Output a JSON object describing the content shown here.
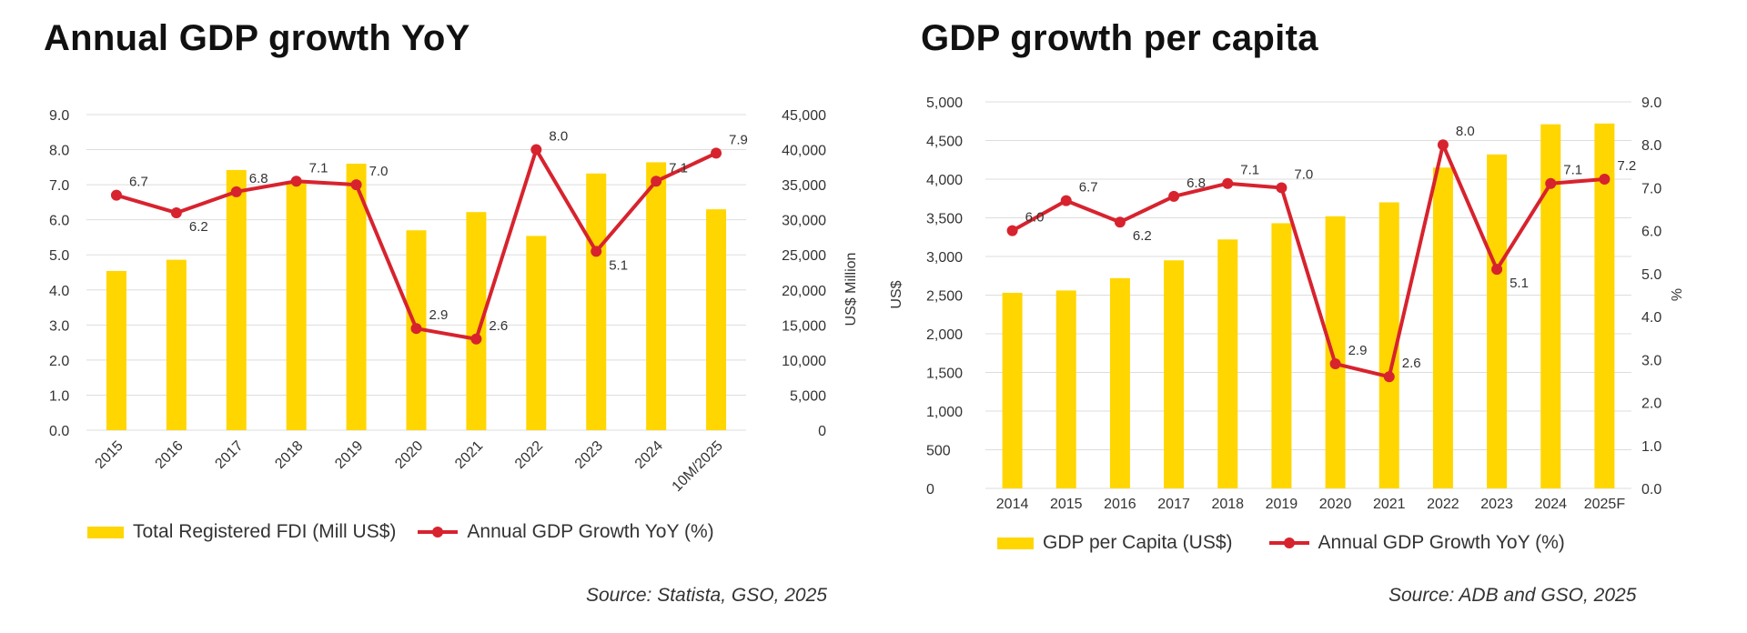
{
  "colors": {
    "bar": "#FFD600",
    "line": "#D7232E",
    "grid": "#DDDDDD",
    "text": "#333333"
  },
  "charts": [
    {
      "title": "Annual GDP growth YoY",
      "source": "Source: Statista, GSO, 2025",
      "legend": {
        "bar": "Total Registered FDI (Mill US$)",
        "line": "Annual GDP Growth YoY (%)"
      }
    },
    {
      "title": "GDP growth per capita",
      "source": "Source: ADB and GSO, 2025",
      "legend": {
        "bar": "GDP per Capita (US$)",
        "line": "Annual GDP Growth YoY (%)"
      }
    }
  ],
  "chart_data": [
    {
      "type": "bar",
      "title": "Annual GDP growth YoY",
      "categories": [
        "2015",
        "2016",
        "2017",
        "2018",
        "2019",
        "2020",
        "2021",
        "2022",
        "2023",
        "2024",
        "10M/2025"
      ],
      "series": [
        {
          "name": "Total Registered FDI (Mill US$)",
          "kind": "bar",
          "axis": "right",
          "values": [
            22700,
            24300,
            37100,
            35500,
            38000,
            28500,
            31100,
            27700,
            36600,
            38200,
            31500
          ]
        },
        {
          "name": "Annual GDP Growth YoY (%)",
          "kind": "line",
          "axis": "left",
          "values": [
            6.7,
            6.2,
            6.8,
            7.1,
            7.0,
            2.9,
            2.6,
            8.0,
            5.1,
            7.1,
            7.9
          ],
          "labels": [
            "6.7",
            "6.2",
            "6.8",
            "7.1",
            "7.0",
            "2.9",
            "2.6",
            "8.0",
            "5.1",
            "7.1",
            "7.9"
          ]
        }
      ],
      "y_left": {
        "range": [
          0,
          9
        ],
        "ticks": [
          "0.0",
          "1.0",
          "2.0",
          "3.0",
          "4.0",
          "5.0",
          "6.0",
          "7.0",
          "8.0",
          "9.0"
        ]
      },
      "y_right": {
        "range": [
          0,
          45000
        ],
        "ticks": [
          "0",
          "5,000",
          "10,000",
          "15,000",
          "20,000",
          "25,000",
          "30,000",
          "35,000",
          "40,000",
          "45,000"
        ],
        "label": "US$ Million"
      }
    },
    {
      "type": "bar",
      "title": "GDP growth per capita",
      "categories": [
        "2014",
        "2015",
        "2016",
        "2017",
        "2018",
        "2019",
        "2020",
        "2021",
        "2022",
        "2023",
        "2024",
        "2025F"
      ],
      "series": [
        {
          "name": "GDP per Capita (US$)",
          "kind": "bar",
          "axis": "left",
          "values": [
            2530,
            2560,
            2720,
            2950,
            3220,
            3430,
            3520,
            3700,
            4150,
            4320,
            4710,
            4720
          ]
        },
        {
          "name": "Annual GDP Growth YoY (%)",
          "kind": "line",
          "axis": "right",
          "values": [
            6.0,
            6.7,
            6.2,
            6.8,
            7.1,
            7.0,
            2.9,
            2.6,
            8.0,
            5.1,
            7.1,
            7.2
          ],
          "labels": [
            "6.0",
            "6.7",
            "6.2",
            "6.8",
            "7.1",
            "7.0",
            "2.9",
            "2.6",
            "8.0",
            "5.1",
            "7.1",
            "7.2"
          ]
        }
      ],
      "y_left": {
        "range": [
          0,
          5000
        ],
        "ticks": [
          "0",
          "500",
          "1,000",
          "1,500",
          "2,000",
          "2,500",
          "3,000",
          "3,500",
          "4,000",
          "4,500",
          "5,000"
        ],
        "label": "US$"
      },
      "y_right": {
        "range": [
          0,
          9
        ],
        "ticks": [
          "0.0",
          "1.0",
          "2.0",
          "3.0",
          "4.0",
          "5.0",
          "6.0",
          "7.0",
          "8.0",
          "9.0"
        ],
        "label": "%"
      }
    }
  ]
}
